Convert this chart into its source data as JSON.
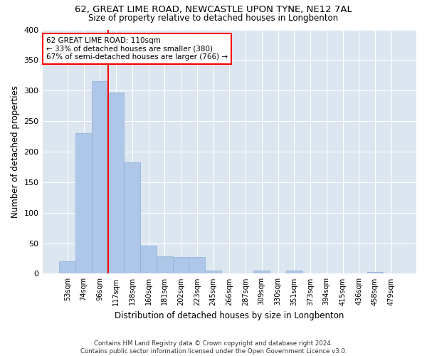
{
  "title": "62, GREAT LIME ROAD, NEWCASTLE UPON TYNE, NE12 7AL",
  "subtitle": "Size of property relative to detached houses in Longbenton",
  "xlabel": "Distribution of detached houses by size in Longbenton",
  "ylabel": "Number of detached properties",
  "bar_color": "#aec6e8",
  "bar_edge_color": "#8aafd4",
  "background_color": "#dce6f0",
  "grid_color": "#ffffff",
  "categories": [
    "53sqm",
    "74sqm",
    "96sqm",
    "117sqm",
    "138sqm",
    "160sqm",
    "181sqm",
    "202sqm",
    "223sqm",
    "245sqm",
    "266sqm",
    "287sqm",
    "309sqm",
    "330sqm",
    "351sqm",
    "373sqm",
    "394sqm",
    "415sqm",
    "436sqm",
    "458sqm",
    "479sqm"
  ],
  "values": [
    20,
    230,
    315,
    297,
    183,
    46,
    28,
    27,
    27,
    5,
    0,
    0,
    5,
    0,
    5,
    0,
    0,
    0,
    0,
    3,
    0
  ],
  "ylim": [
    0,
    400
  ],
  "yticks": [
    0,
    50,
    100,
    150,
    200,
    250,
    300,
    350,
    400
  ],
  "property_label": "62 GREAT LIME ROAD: 110sqm",
  "pct_smaller": 33,
  "n_smaller": 380,
  "pct_larger": 67,
  "n_larger": 766,
  "red_line_x": 2.5,
  "footer_line1": "Contains HM Land Registry data © Crown copyright and database right 2024.",
  "footer_line2": "Contains public sector information licensed under the Open Government Licence v3.0."
}
